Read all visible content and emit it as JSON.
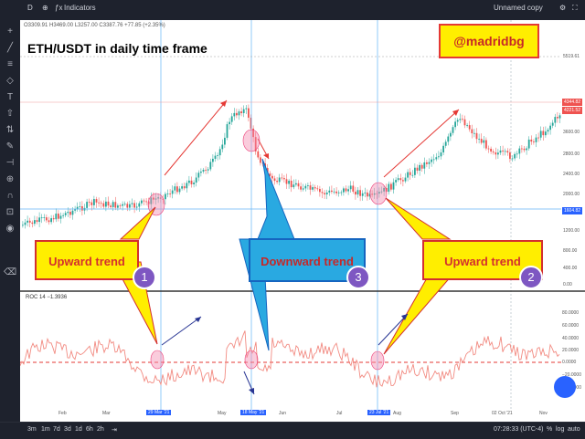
{
  "toolbar": {
    "symbol": "D",
    "indicators_label": "Indicators",
    "layout_label": "Unnamed copy"
  },
  "price_header": "O3309.91 H3469.00 L3257.00 C3387.76 +77.85 (+2.35%)",
  "chart_title": "ETH/USDT in daily time frame",
  "watermark": "@madridbg",
  "price_axis": [
    "5519.61",
    "4344.82",
    "4221.52",
    "3600.00",
    "2800.00",
    "2400.00",
    "2000.00",
    "1604.82",
    "1200.00",
    "800.00",
    "400.00",
    "0.00"
  ],
  "roc_header": "ROC 14  −1.3936",
  "roc_axis": [
    "80.0000",
    "60.0000",
    "40.0000",
    "20.0000",
    "0.0000",
    "−20.0000",
    "−40.0000"
  ],
  "callouts": [
    {
      "text": "Upward trend",
      "badge": "1"
    },
    {
      "text": "Downward trend",
      "badge": "3"
    },
    {
      "text": "Upward trend",
      "badge": "2"
    }
  ],
  "dates": [
    "Feb",
    "Mar",
    "29 Mar '21",
    "May",
    "18 May '21",
    "Jun",
    "Jul",
    "23 Jul '21",
    "Aug",
    "Sep",
    "02 Oct '21",
    "Nov"
  ],
  "bottom": {
    "ranges": [
      "3m",
      "1m",
      "7d",
      "3d",
      "1d",
      "6h",
      "2h"
    ],
    "clock": "07:28:33 (UTC-4)",
    "pct": "%",
    "log": "log",
    "auto": "auto"
  },
  "colors": {
    "bull": "#26a69a",
    "bear": "#ef5350",
    "callout_fill": "#ffee00",
    "callout_text": "#d32f2f",
    "callout_down_fill": "#29a9e1",
    "roc_line": "#f28b82",
    "arrow_red": "#e53935",
    "arrow_navy": "#283593"
  }
}
